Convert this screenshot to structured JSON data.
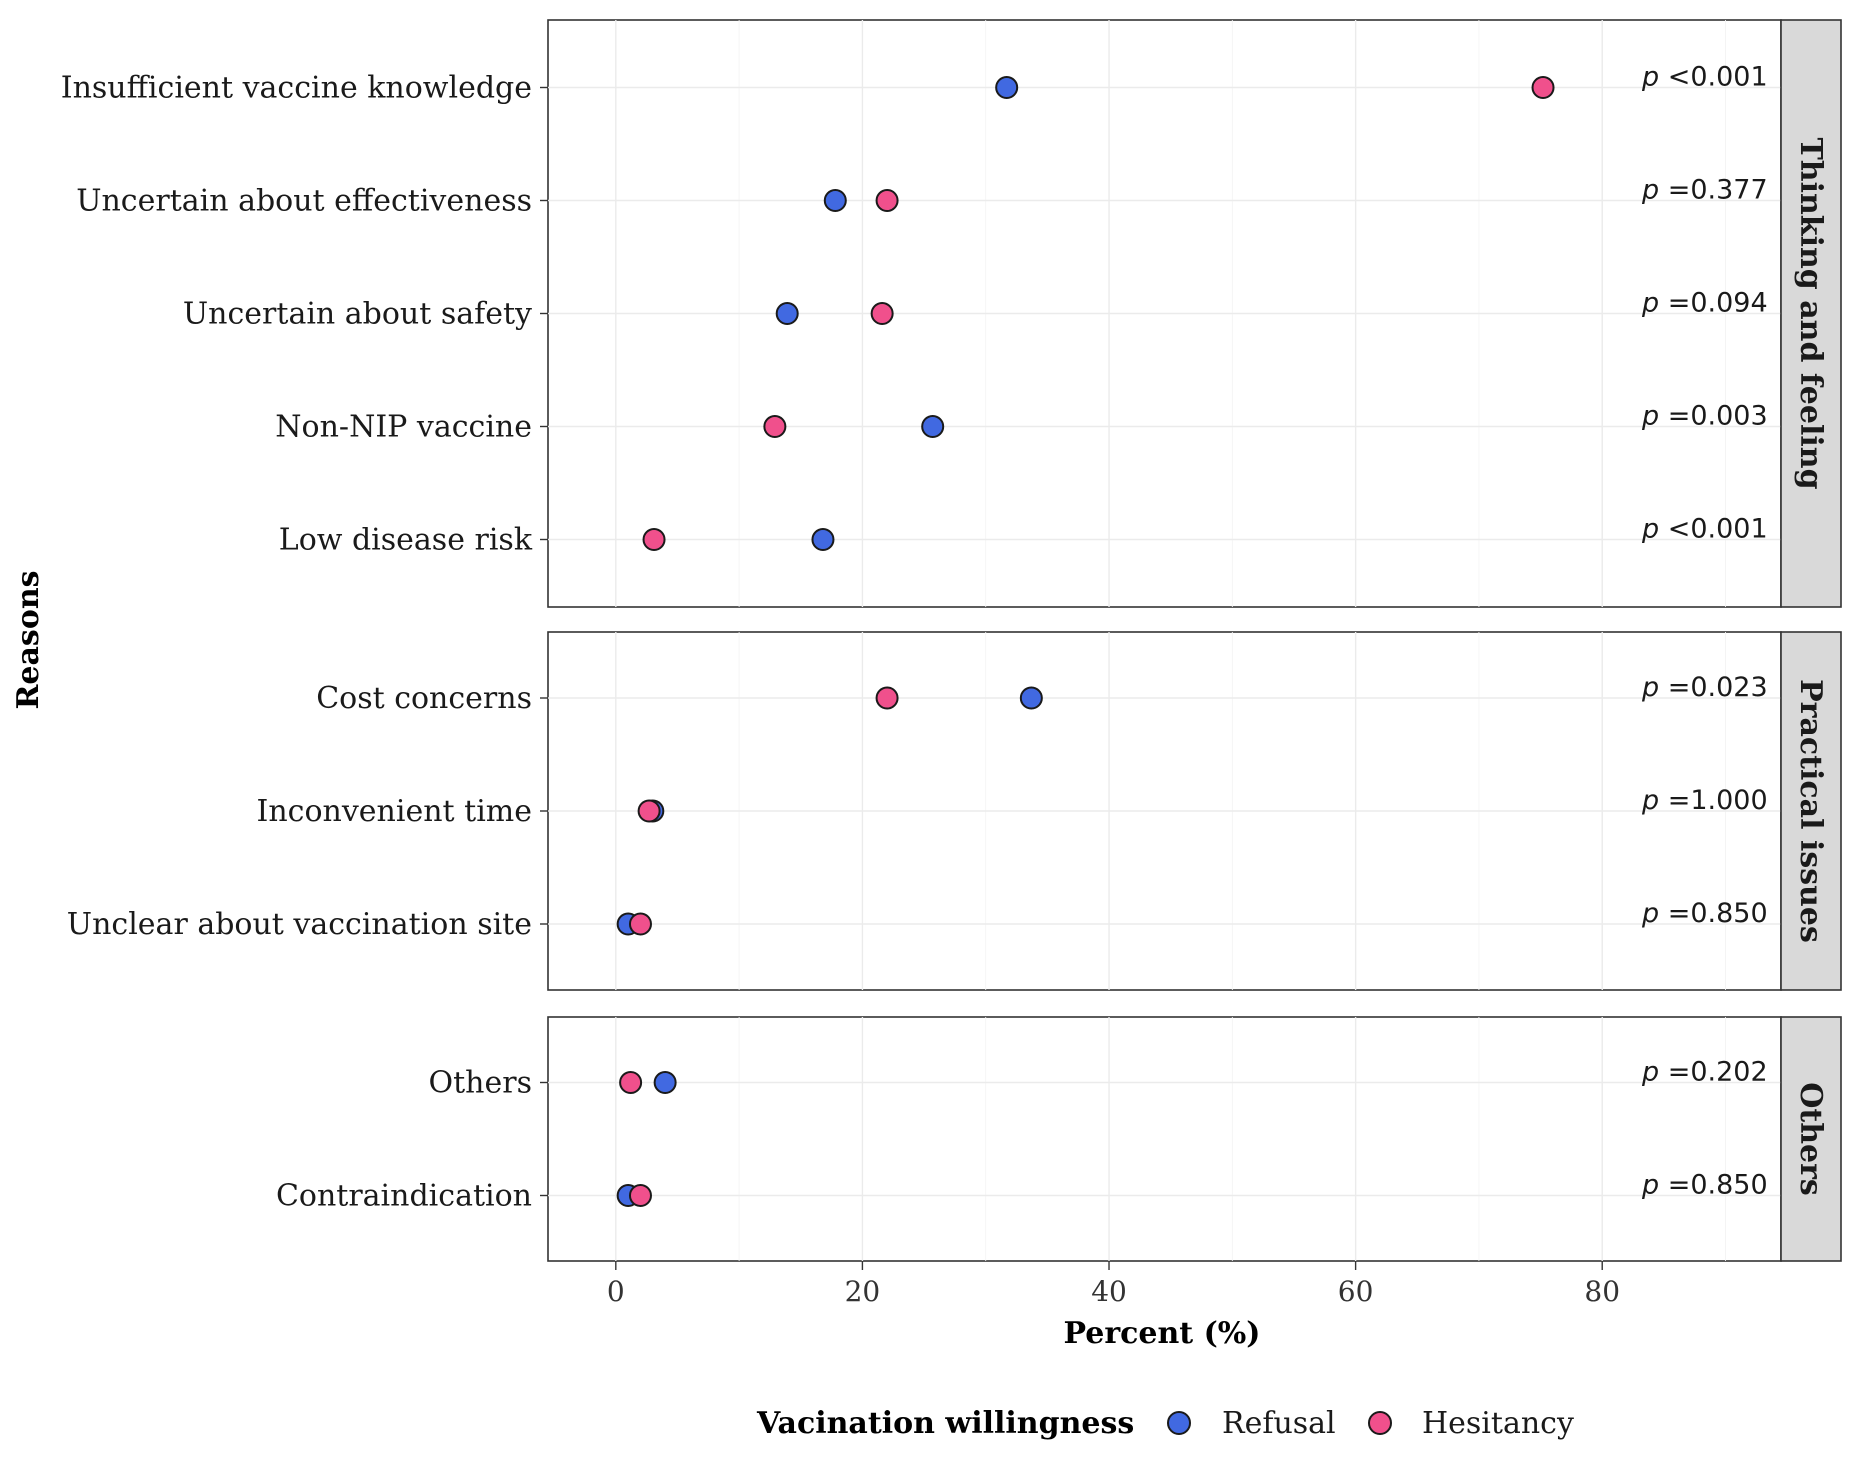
{
  "chart_data": {
    "type": "scatter",
    "subtype": "faceted dot plot",
    "xlabel": "Percent (%)",
    "ylabel": "Reasons",
    "xlim": [
      -5.5,
      94.5
    ],
    "xticks": [
      0,
      20,
      40,
      60,
      80
    ],
    "grid": true,
    "legend": {
      "title": "Vacination willingness",
      "position": "bottom"
    },
    "series": [
      {
        "name": "Refusal",
        "color": "#4169e1"
      },
      {
        "name": "Hesitancy",
        "color": "#f0508c"
      }
    ],
    "facets": [
      {
        "name": "Thinking and feeling",
        "rows": [
          {
            "category": "Insufficient vaccine knowledge",
            "refusal": 31.7,
            "hesitancy": 75.2,
            "p_label": "p",
            "p_value": "<0.001"
          },
          {
            "category": "Uncertain about effectiveness",
            "refusal": 17.8,
            "hesitancy": 22.0,
            "p_label": "p",
            "p_value": "=0.377"
          },
          {
            "category": "Uncertain about safety",
            "refusal": 13.9,
            "hesitancy": 21.6,
            "p_label": "p",
            "p_value": "=0.094"
          },
          {
            "category": "Non-NIP vaccine",
            "refusal": 25.7,
            "hesitancy": 12.9,
            "p_label": "p",
            "p_value": "=0.003"
          },
          {
            "category": "Low disease risk",
            "refusal": 16.8,
            "hesitancy": 3.1,
            "p_label": "p",
            "p_value": "<0.001"
          }
        ]
      },
      {
        "name": "Practical issues",
        "rows": [
          {
            "category": "Cost concerns",
            "refusal": 33.7,
            "hesitancy": 22.0,
            "p_label": "p",
            "p_value": "=0.023"
          },
          {
            "category": "Inconvenient time",
            "refusal": 3.0,
            "hesitancy": 2.7,
            "p_label": "p",
            "p_value": "=1.000"
          },
          {
            "category": "Unclear about vaccination site",
            "refusal": 1.0,
            "hesitancy": 2.0,
            "p_label": "p",
            "p_value": "=0.850"
          }
        ]
      },
      {
        "name": "Others",
        "rows": [
          {
            "category": "Others",
            "refusal": 4.0,
            "hesitancy": 1.2,
            "p_label": "p",
            "p_value": "=0.202"
          },
          {
            "category": "Contraindication",
            "refusal": 1.0,
            "hesitancy": 2.0,
            "p_label": "p",
            "p_value": "=0.850"
          }
        ]
      }
    ]
  }
}
